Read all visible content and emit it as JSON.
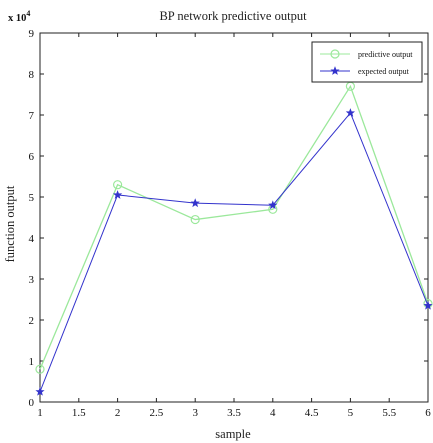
{
  "chart_data": {
    "type": "line",
    "title": "BP network predictive output",
    "xlabel": "sample",
    "ylabel": "function output",
    "y_exponent_label": "x 10",
    "y_exponent_power": "4",
    "y_scale_factor": 10000,
    "xlim": [
      1,
      6
    ],
    "ylim": [
      0,
      9
    ],
    "x_ticks": [
      "1",
      "1.5",
      "2",
      "2.5",
      "3",
      "3.5",
      "4",
      "4.5",
      "5",
      "5.5",
      "6"
    ],
    "y_ticks": [
      "0",
      "1",
      "2",
      "3",
      "4",
      "5",
      "6",
      "7",
      "8",
      "9"
    ],
    "grid": false,
    "legend_position": "top-right",
    "x": [
      1,
      2,
      3,
      4,
      5,
      6
    ],
    "series": [
      {
        "name": "predictive output",
        "color": "#9be89b",
        "marker": "circle",
        "values": [
          0.8,
          5.3,
          4.45,
          4.7,
          7.7,
          2.4
        ]
      },
      {
        "name": "expected output",
        "color": "#3333cc",
        "marker": "star",
        "values": [
          0.25,
          5.05,
          4.85,
          4.8,
          7.05,
          2.35
        ]
      }
    ]
  }
}
